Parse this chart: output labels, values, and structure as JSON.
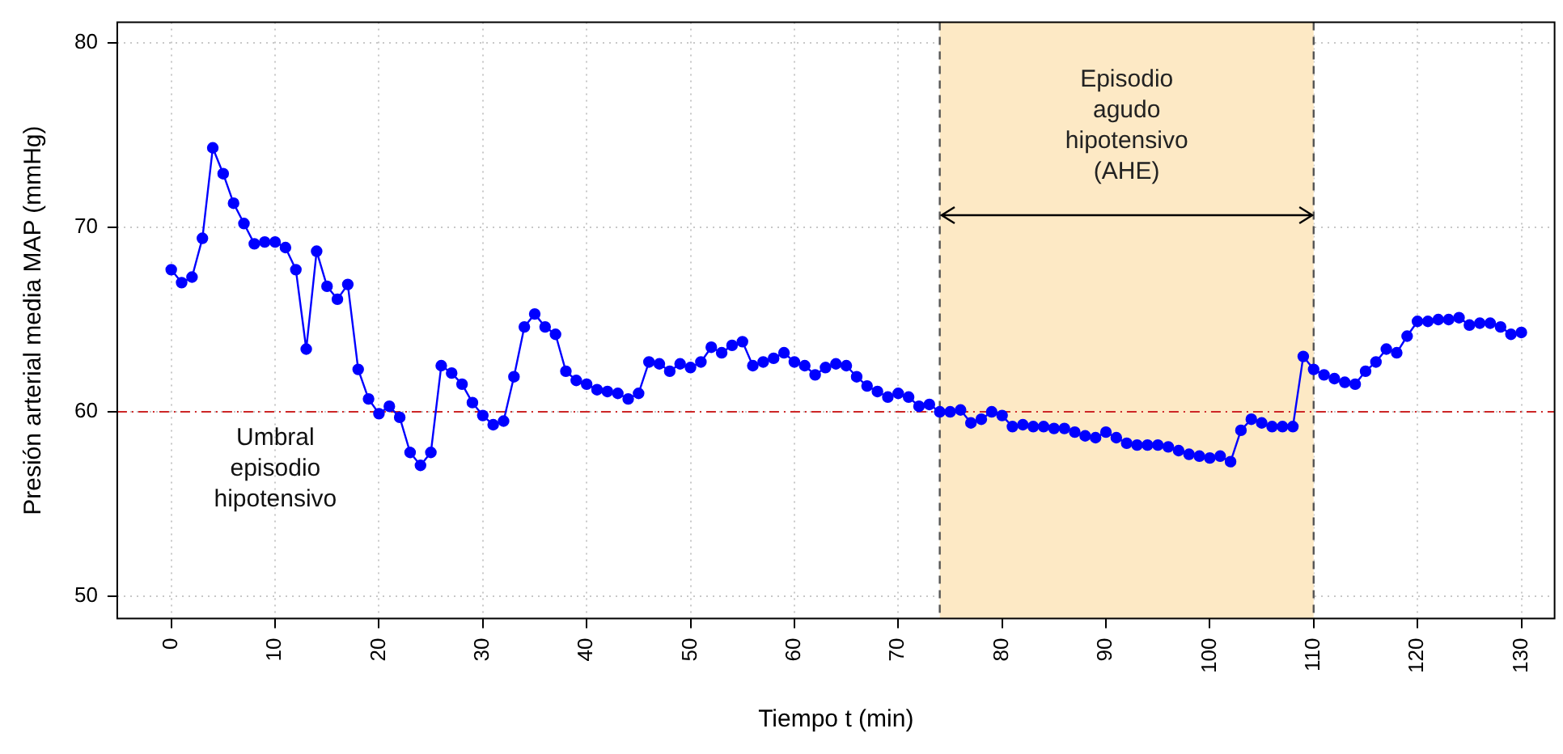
{
  "chart_data": {
    "type": "line",
    "xlabel": "Tiempo t (min)",
    "ylabel": "Presión arterial media MAP (mmHg)",
    "x": [
      0,
      1,
      2,
      3,
      4,
      5,
      6,
      7,
      8,
      9,
      10,
      11,
      12,
      13,
      14,
      15,
      16,
      17,
      18,
      19,
      20,
      21,
      22,
      23,
      24,
      25,
      26,
      27,
      28,
      29,
      30,
      31,
      32,
      33,
      34,
      35,
      36,
      37,
      38,
      39,
      40,
      41,
      42,
      43,
      44,
      45,
      46,
      47,
      48,
      49,
      50,
      51,
      52,
      53,
      54,
      55,
      56,
      57,
      58,
      59,
      60,
      61,
      62,
      63,
      64,
      65,
      66,
      67,
      68,
      69,
      70,
      71,
      72,
      73,
      74,
      75,
      76,
      77,
      78,
      79,
      80,
      81,
      82,
      83,
      84,
      85,
      86,
      87,
      88,
      89,
      90,
      91,
      92,
      93,
      94,
      95,
      96,
      97,
      98,
      99,
      100,
      101,
      102,
      103,
      104,
      105,
      106,
      107,
      108,
      109,
      110,
      111,
      112,
      113,
      114,
      115,
      116,
      117,
      118,
      119,
      120,
      121,
      122,
      123,
      124,
      125,
      126,
      127,
      128,
      129,
      130
    ],
    "series": [
      {
        "color": "#0000ff",
        "values": [
          67.7,
          67.0,
          67.3,
          69.4,
          74.3,
          72.9,
          71.3,
          70.2,
          69.1,
          69.2,
          69.2,
          68.9,
          67.7,
          63.4,
          68.7,
          66.8,
          66.1,
          66.9,
          62.3,
          60.7,
          59.9,
          60.3,
          59.7,
          57.8,
          57.1,
          57.8,
          62.5,
          62.1,
          61.5,
          60.5,
          59.8,
          59.3,
          59.5,
          61.9,
          64.6,
          65.3,
          64.6,
          64.2,
          62.2,
          61.7,
          61.5,
          61.2,
          61.1,
          61.0,
          60.7,
          61.0,
          62.7,
          62.6,
          62.2,
          62.6,
          62.4,
          62.7,
          63.5,
          63.2,
          63.6,
          63.8,
          62.5,
          62.7,
          62.9,
          63.2,
          62.7,
          62.5,
          62.0,
          62.4,
          62.6,
          62.5,
          61.9,
          61.4,
          61.1,
          60.8,
          61.0,
          60.8,
          60.3,
          60.4,
          60.0,
          60.0,
          60.1,
          59.4,
          59.6,
          60.0,
          59.8,
          59.2,
          59.3,
          59.2,
          59.2,
          59.1,
          59.1,
          58.9,
          58.7,
          58.6,
          58.9,
          58.6,
          58.3,
          58.2,
          58.2,
          58.2,
          58.1,
          57.9,
          57.7,
          57.6,
          57.5,
          57.6,
          57.3,
          59.0,
          59.6,
          59.4,
          59.2,
          59.2,
          59.2,
          63.0,
          62.3,
          62.0,
          61.8,
          61.6,
          61.5,
          62.2,
          62.7,
          63.4,
          63.2,
          64.1,
          64.9,
          64.9,
          65.0,
          65.0,
          65.1,
          64.7,
          64.8,
          64.8,
          64.6,
          64.2,
          64.3
        ]
      }
    ],
    "xlim": [
      -5.2,
      133.2
    ],
    "ylim": [
      48.8,
      81.1
    ],
    "xticks": [
      0,
      10,
      20,
      30,
      40,
      50,
      60,
      70,
      80,
      90,
      100,
      110,
      120,
      130
    ],
    "yticks": [
      50,
      60,
      70,
      80
    ],
    "grid": true,
    "legend": false,
    "marker": "circle",
    "line_style": "solid",
    "ref_lines": [
      {
        "axis": "y",
        "value": 60,
        "label": "Umbral\nepisodio\nhipotensivo",
        "color": "#cd2626",
        "line_style": "dashed"
      },
      {
        "axis": "x",
        "value": 74,
        "color": "#555555",
        "line_style": "dashed"
      },
      {
        "axis": "x",
        "value": 110,
        "color": "#555555",
        "line_style": "dashed"
      }
    ],
    "bands": [
      {
        "axis": "x",
        "from": 74,
        "to": 110,
        "label": "Episodio\nagudo\nhipotensivo\n(AHE)",
        "color": "#fde9c5"
      }
    ]
  }
}
